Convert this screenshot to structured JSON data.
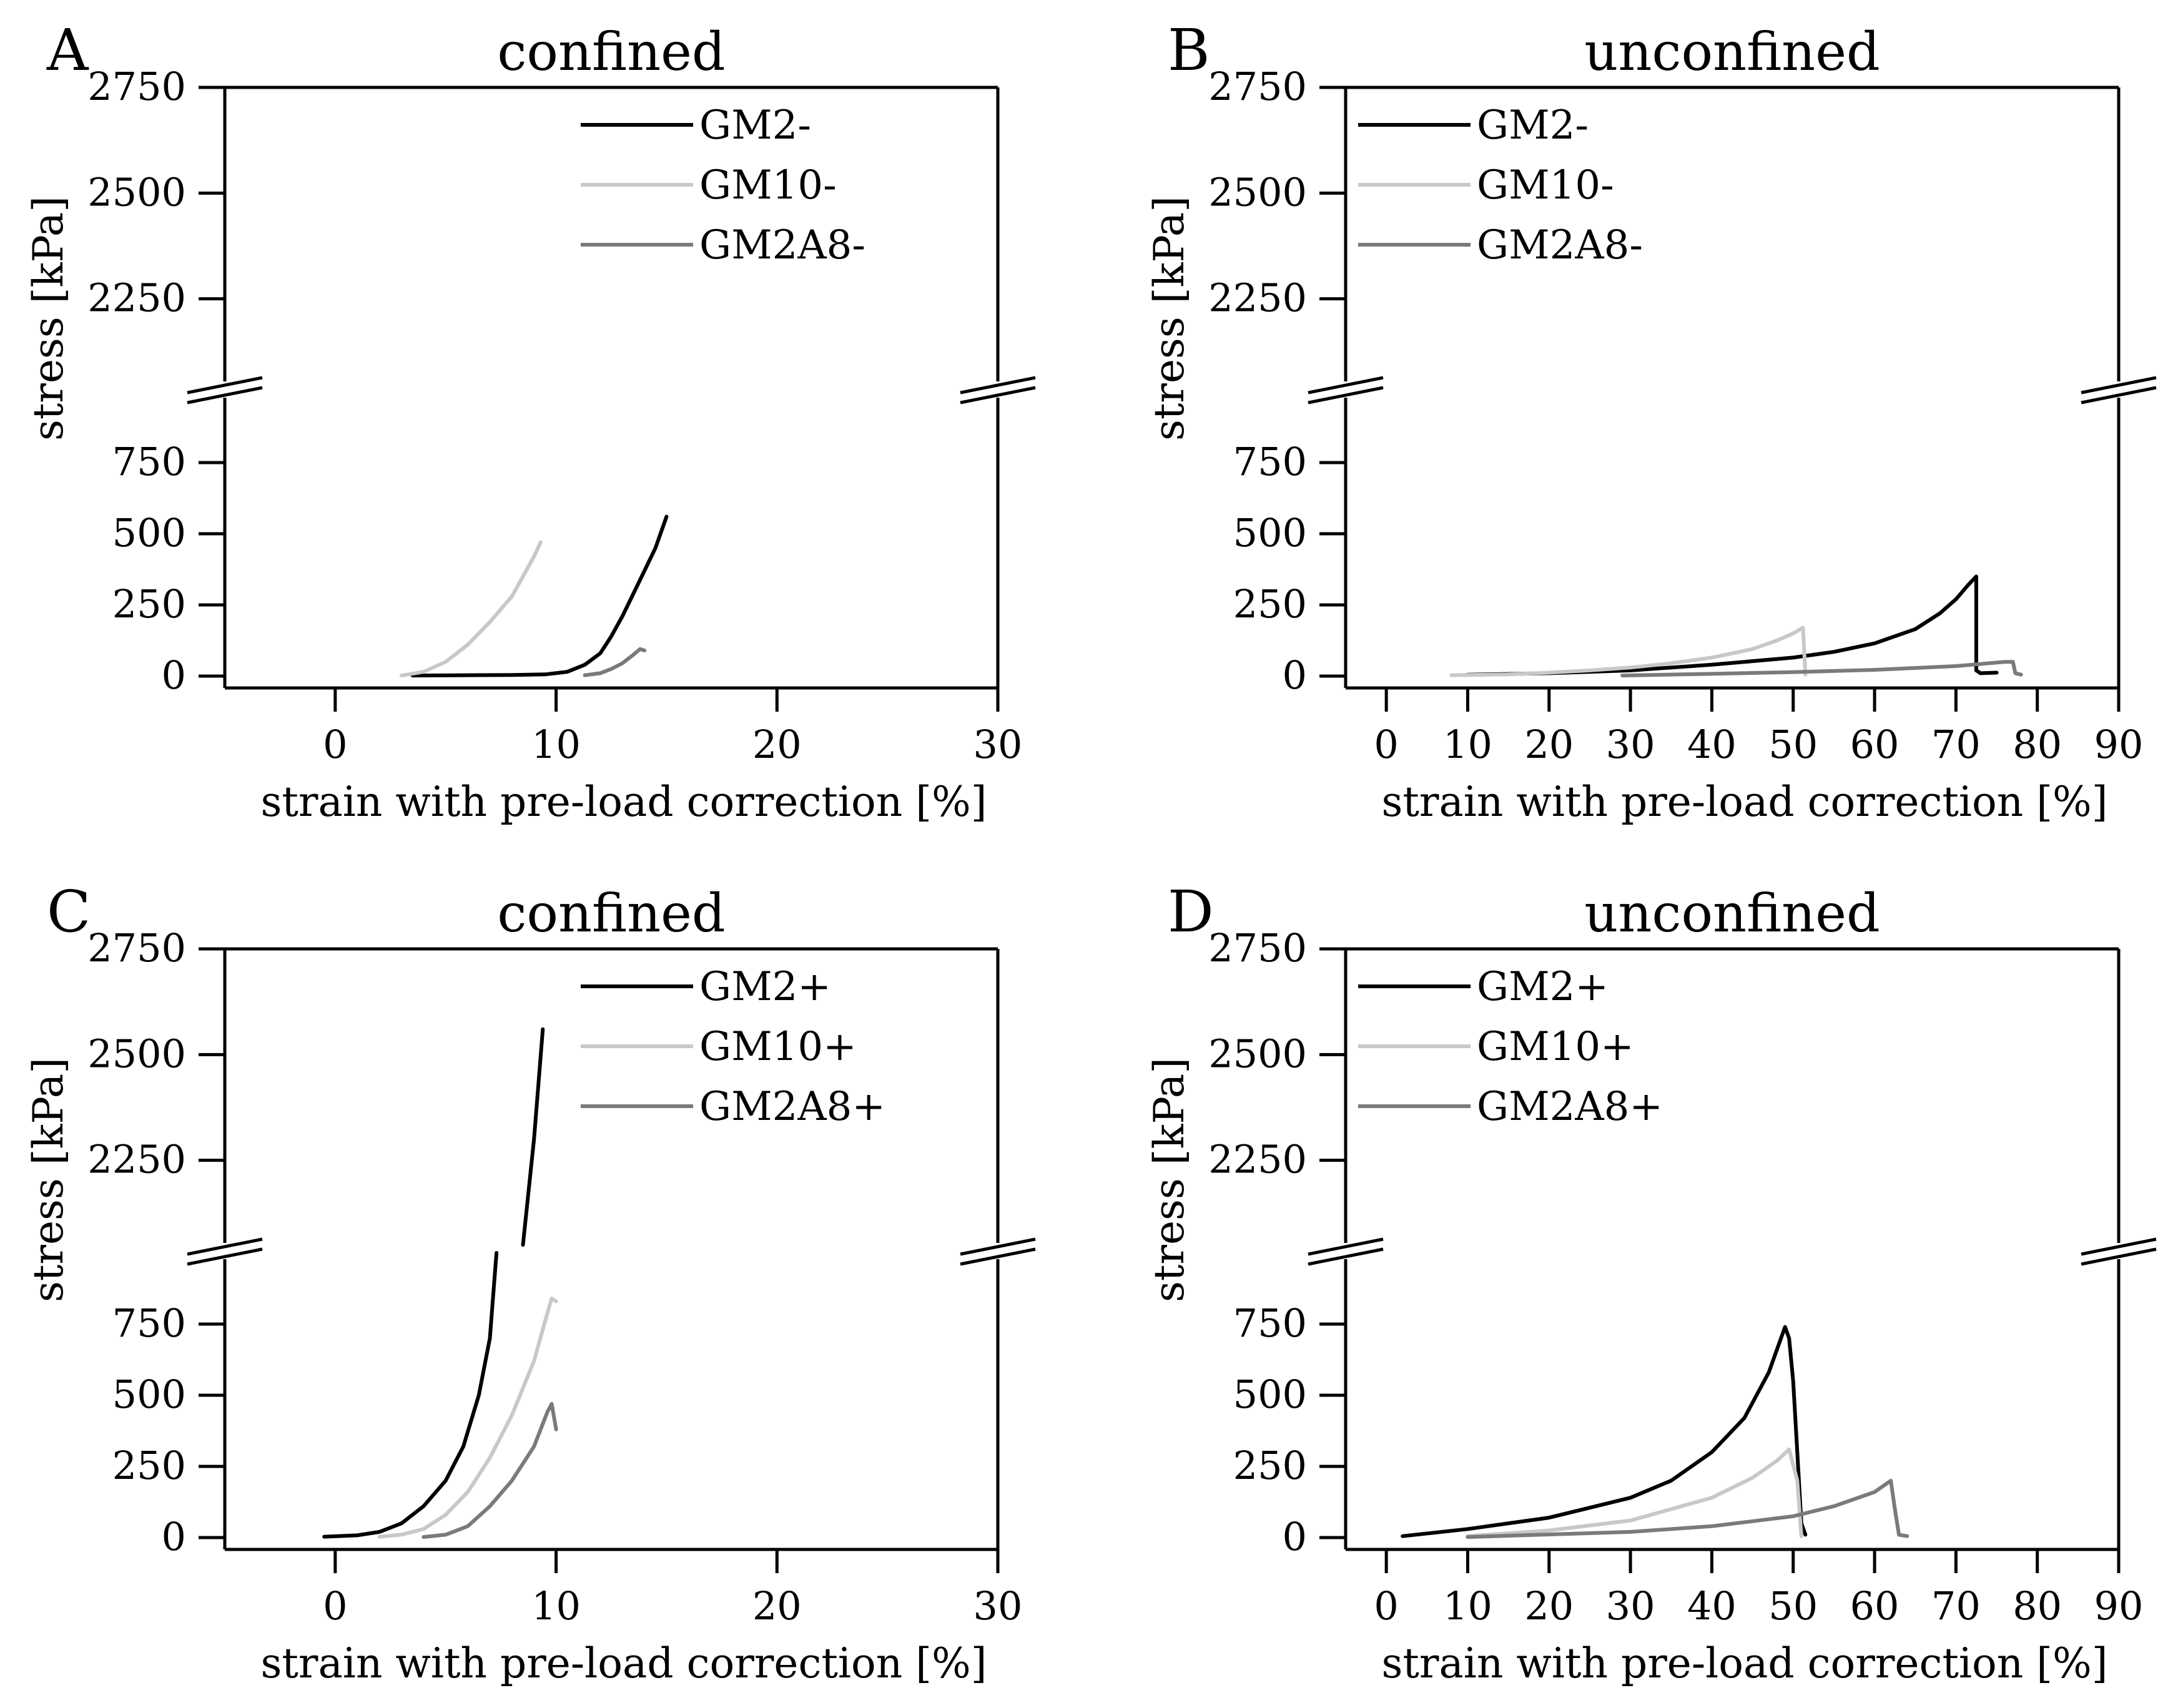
{
  "figure": {
    "colors": {
      "GM2": "#000000",
      "GM10": "#c8c8c8",
      "GM2A8": "#7a7a7a",
      "axis": "#000000"
    }
  },
  "chart_data": [
    {
      "panel": "A",
      "type": "line",
      "title": "confined",
      "xlabel": "strain with pre-load correction [%]",
      "ylabel": "stress [kPa]",
      "xlim": [
        -5,
        30
      ],
      "xticks": [
        "0",
        "10",
        "20",
        "30"
      ],
      "y_lower_range": [
        0,
        1000
      ],
      "y_lower_ticks": [
        "0",
        "250",
        "500",
        "750"
      ],
      "y_upper_range": [
        2000,
        2750
      ],
      "y_upper_ticks": [
        "2250",
        "2500",
        "2750"
      ],
      "y_axis_break": true,
      "legend_position": "top-right",
      "series": [
        {
          "name": "GM2-",
          "color": "#000000",
          "points": [
            [
              3.5,
              2
            ],
            [
              6,
              3
            ],
            [
              8,
              4
            ],
            [
              9.5,
              6
            ],
            [
              10.5,
              15
            ],
            [
              11.3,
              40
            ],
            [
              12,
              80
            ],
            [
              12.5,
              140
            ],
            [
              13,
              210
            ],
            [
              13.5,
              290
            ],
            [
              14,
              370
            ],
            [
              14.5,
              450
            ],
            [
              15,
              560
            ]
          ]
        },
        {
          "name": "GM10-",
          "color": "#c8c8c8",
          "points": [
            [
              3,
              2
            ],
            [
              4,
              15
            ],
            [
              5,
              50
            ],
            [
              6,
              110
            ],
            [
              7,
              190
            ],
            [
              8,
              280
            ],
            [
              8.5,
              350
            ],
            [
              9,
              420
            ],
            [
              9.3,
              470
            ]
          ]
        },
        {
          "name": "GM2A8-",
          "color": "#7a7a7a",
          "points": [
            [
              11.3,
              3
            ],
            [
              12,
              10
            ],
            [
              12.5,
              25
            ],
            [
              13,
              45
            ],
            [
              13.5,
              75
            ],
            [
              13.8,
              95
            ],
            [
              14,
              90
            ]
          ]
        }
      ]
    },
    {
      "panel": "B",
      "type": "line",
      "title": "unconfined",
      "xlabel": "strain with pre-load correction [%]",
      "ylabel": "stress [kPa]",
      "xlim": [
        -5,
        90
      ],
      "xticks": [
        "0",
        "10",
        "20",
        "30",
        "40",
        "50",
        "60",
        "70",
        "80",
        "90"
      ],
      "y_lower_range": [
        0,
        1000
      ],
      "y_lower_ticks": [
        "0",
        "250",
        "500",
        "750"
      ],
      "y_upper_range": [
        2000,
        2750
      ],
      "y_upper_ticks": [
        "2250",
        "2500",
        "2750"
      ],
      "y_axis_break": true,
      "legend_position": "top-left",
      "series": [
        {
          "name": "GM2-",
          "color": "#000000",
          "points": [
            [
              10,
              5
            ],
            [
              20,
              10
            ],
            [
              30,
              20
            ],
            [
              40,
              40
            ],
            [
              50,
              65
            ],
            [
              55,
              85
            ],
            [
              60,
              115
            ],
            [
              65,
              165
            ],
            [
              68,
              220
            ],
            [
              70,
              270
            ],
            [
              71.5,
              320
            ],
            [
              72.5,
              350
            ],
            [
              72.5,
              20
            ],
            [
              73,
              10
            ],
            [
              75,
              12
            ]
          ]
        },
        {
          "name": "GM10-",
          "color": "#c8c8c8",
          "points": [
            [
              8,
              3
            ],
            [
              15,
              6
            ],
            [
              20,
              12
            ],
            [
              25,
              20
            ],
            [
              30,
              30
            ],
            [
              35,
              45
            ],
            [
              40,
              65
            ],
            [
              45,
              95
            ],
            [
              48,
              125
            ],
            [
              50,
              150
            ],
            [
              51.2,
              170
            ],
            [
              51.5,
              5
            ]
          ]
        },
        {
          "name": "GM2A8-",
          "color": "#7a7a7a",
          "points": [
            [
              29,
              2
            ],
            [
              40,
              8
            ],
            [
              50,
              14
            ],
            [
              60,
              22
            ],
            [
              70,
              35
            ],
            [
              76,
              50
            ],
            [
              77,
              50
            ],
            [
              77.3,
              10
            ],
            [
              78,
              5
            ]
          ]
        }
      ]
    },
    {
      "panel": "C",
      "type": "line",
      "title": "confined",
      "xlabel": "strain with pre-load correction [%]",
      "ylabel": "stress [kPa]",
      "xlim": [
        -5,
        30
      ],
      "xticks": [
        "0",
        "10",
        "20",
        "30"
      ],
      "y_lower_range": [
        0,
        1000
      ],
      "y_lower_ticks": [
        "0",
        "250",
        "500",
        "750"
      ],
      "y_upper_range": [
        2000,
        2750
      ],
      "y_upper_ticks": [
        "2250",
        "2500",
        "2750"
      ],
      "y_axis_break": true,
      "legend_position": "top-right",
      "series": [
        {
          "name": "GM2+",
          "color": "#000000",
          "segments": [
            [
              [
                -0.5,
                3
              ],
              [
                1,
                8
              ],
              [
                2,
                20
              ],
              [
                3,
                50
              ],
              [
                4,
                110
              ],
              [
                5,
                200
              ],
              [
                5.8,
                320
              ],
              [
                6.5,
                500
              ],
              [
                7,
                700
              ],
              [
                7.3,
                1000
              ]
            ],
            [
              [
                8.5,
                2050
              ],
              [
                9,
                2300
              ],
              [
                9.4,
                2560
              ]
            ]
          ]
        },
        {
          "name": "GM10+",
          "color": "#c8c8c8",
          "points": [
            [
              2,
              3
            ],
            [
              3,
              10
            ],
            [
              4,
              30
            ],
            [
              5,
              80
            ],
            [
              6,
              160
            ],
            [
              7,
              280
            ],
            [
              8,
              430
            ],
            [
              9,
              620
            ],
            [
              9.5,
              760
            ],
            [
              9.8,
              840
            ],
            [
              10,
              830
            ]
          ]
        },
        {
          "name": "GM2A8+",
          "color": "#7a7a7a",
          "points": [
            [
              4,
              2
            ],
            [
              5,
              10
            ],
            [
              6,
              40
            ],
            [
              7,
              110
            ],
            [
              8,
              200
            ],
            [
              9,
              320
            ],
            [
              9.6,
              440
            ],
            [
              9.8,
              470
            ],
            [
              10,
              380
            ]
          ]
        }
      ]
    },
    {
      "panel": "D",
      "type": "line",
      "title": "unconfined",
      "xlabel": "strain with pre-load correction [%]",
      "ylabel": "stress [kPa]",
      "xlim": [
        -5,
        90
      ],
      "xticks": [
        "0",
        "10",
        "20",
        "30",
        "40",
        "50",
        "60",
        "70",
        "80",
        "90"
      ],
      "y_lower_range": [
        0,
        1000
      ],
      "y_lower_ticks": [
        "0",
        "250",
        "500",
        "750"
      ],
      "y_upper_range": [
        2000,
        2750
      ],
      "y_upper_ticks": [
        "2250",
        "2500",
        "2750"
      ],
      "y_axis_break": true,
      "legend_position": "top-left",
      "series": [
        {
          "name": "GM2+",
          "color": "#000000",
          "points": [
            [
              2,
              5
            ],
            [
              10,
              30
            ],
            [
              20,
              70
            ],
            [
              30,
              140
            ],
            [
              35,
              200
            ],
            [
              40,
              300
            ],
            [
              44,
              420
            ],
            [
              47,
              580
            ],
            [
              48.5,
              700
            ],
            [
              49,
              740
            ],
            [
              49.5,
              700
            ],
            [
              50,
              550
            ],
            [
              50.5,
              300
            ],
            [
              51,
              50
            ],
            [
              51.5,
              10
            ]
          ]
        },
        {
          "name": "GM10+",
          "color": "#c8c8c8",
          "points": [
            [
              10,
              5
            ],
            [
              20,
              25
            ],
            [
              30,
              60
            ],
            [
              40,
              140
            ],
            [
              45,
              210
            ],
            [
              48,
              270
            ],
            [
              49.5,
              310
            ],
            [
              50.5,
              200
            ],
            [
              51,
              5
            ]
          ]
        },
        {
          "name": "GM2A8+",
          "color": "#7a7a7a",
          "points": [
            [
              10,
              2
            ],
            [
              30,
              20
            ],
            [
              40,
              40
            ],
            [
              50,
              75
            ],
            [
              55,
              110
            ],
            [
              60,
              160
            ],
            [
              62,
              200
            ],
            [
              62.5,
              100
            ],
            [
              63,
              10
            ],
            [
              64,
              5
            ]
          ]
        }
      ]
    }
  ]
}
